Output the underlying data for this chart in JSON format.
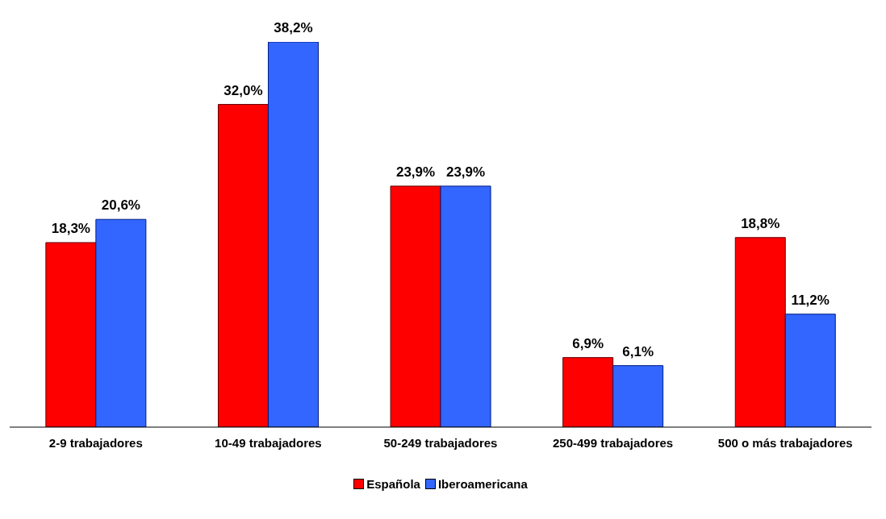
{
  "chart_data": {
    "type": "bar",
    "categories": [
      "2-9 trabajadores",
      "10-49 trabajadores",
      "50-249 trabajadores",
      "250-499 trabajadores",
      "500 o más trabajadores"
    ],
    "series": [
      {
        "name": "Española",
        "color": "#ff0000",
        "values": [
          18.3,
          32.0,
          23.9,
          6.9,
          18.8
        ],
        "value_labels": [
          "18,3%",
          "32,0%",
          "23,9%",
          "6,9%",
          "18,8%"
        ]
      },
      {
        "name": "Iberoamericana",
        "color": "#3366ff",
        "values": [
          20.6,
          38.2,
          23.9,
          6.1,
          11.2
        ],
        "value_labels": [
          "20,6%",
          "38,2%",
          "23,9%",
          "6,1%",
          "11,2%"
        ]
      }
    ],
    "legend": "bottom",
    "tick_labels": "x",
    "grid": false
  }
}
